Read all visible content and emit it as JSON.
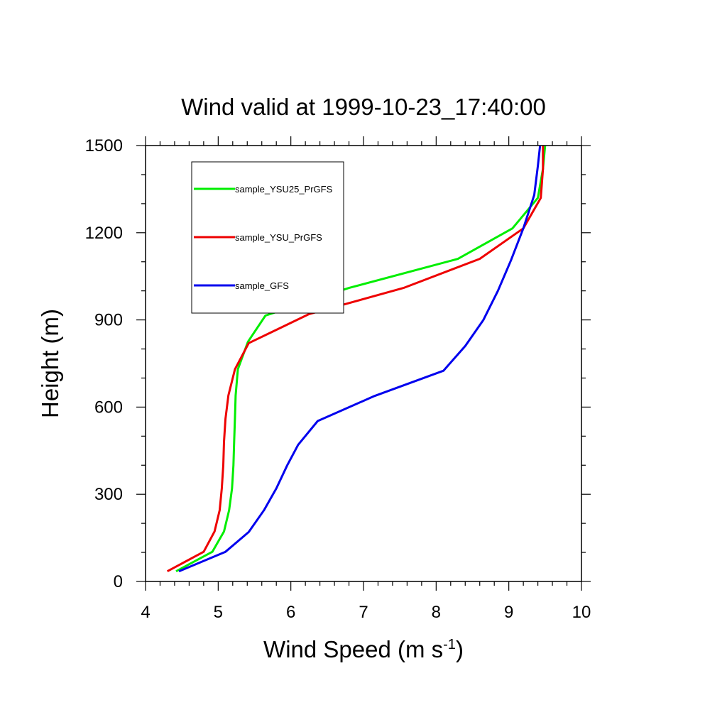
{
  "chart_data": {
    "type": "line",
    "title": "Wind valid at 1999-10-23_17:40:00",
    "xlabel": "Wind Speed (m s",
    "xlabel_sup": "-1",
    "xlabel_end": ")",
    "ylabel": "Height (m)",
    "xlim": [
      4,
      10
    ],
    "ylim": [
      0,
      1500
    ],
    "x_ticks": [
      4,
      5,
      6,
      7,
      8,
      9,
      10
    ],
    "y_ticks": [
      0,
      300,
      600,
      900,
      1200,
      1500
    ],
    "x_tick_labels": [
      "4",
      "5",
      "6",
      "7",
      "8",
      "9",
      "10"
    ],
    "y_tick_labels": [
      "0",
      "300",
      "600",
      "900",
      "1200",
      "1500"
    ],
    "legend_position": "top-left",
    "series": [
      {
        "name": "sample_YSU25_PrGFS",
        "color": "#00ee00",
        "points": [
          [
            4.42,
            35
          ],
          [
            4.92,
            102
          ],
          [
            5.08,
            172
          ],
          [
            5.15,
            245
          ],
          [
            5.19,
            320
          ],
          [
            5.21,
            400
          ],
          [
            5.22,
            480
          ],
          [
            5.23,
            560
          ],
          [
            5.24,
            640
          ],
          [
            5.27,
            730
          ],
          [
            5.41,
            825
          ],
          [
            5.65,
            915
          ],
          [
            6.8,
            1010
          ],
          [
            8.3,
            1110
          ],
          [
            9.05,
            1215
          ],
          [
            9.4,
            1320
          ],
          [
            9.47,
            1420
          ],
          [
            9.5,
            1500
          ]
        ]
      },
      {
        "name": "sample_YSU_PrGFS",
        "color": "#ee0000",
        "points": [
          [
            4.3,
            35
          ],
          [
            4.8,
            102
          ],
          [
            4.95,
            172
          ],
          [
            5.02,
            245
          ],
          [
            5.05,
            320
          ],
          [
            5.07,
            400
          ],
          [
            5.08,
            480
          ],
          [
            5.1,
            560
          ],
          [
            5.14,
            640
          ],
          [
            5.23,
            730
          ],
          [
            5.42,
            820
          ],
          [
            6.25,
            920
          ],
          [
            7.55,
            1010
          ],
          [
            8.6,
            1110
          ],
          [
            9.2,
            1215
          ],
          [
            9.44,
            1320
          ],
          [
            9.47,
            1420
          ],
          [
            9.47,
            1500
          ]
        ]
      },
      {
        "name": "sample_GFS",
        "color": "#0000ee",
        "points": [
          [
            4.46,
            35
          ],
          [
            5.1,
            102
          ],
          [
            5.42,
            170
          ],
          [
            5.63,
            245
          ],
          [
            5.8,
            320
          ],
          [
            5.95,
            400
          ],
          [
            6.1,
            470
          ],
          [
            6.37,
            552
          ],
          [
            7.15,
            638
          ],
          [
            8.1,
            725
          ],
          [
            8.4,
            810
          ],
          [
            8.65,
            900
          ],
          [
            8.85,
            1000
          ],
          [
            9.03,
            1105
          ],
          [
            9.2,
            1215
          ],
          [
            9.35,
            1330
          ],
          [
            9.4,
            1430
          ],
          [
            9.43,
            1500
          ]
        ]
      }
    ]
  }
}
